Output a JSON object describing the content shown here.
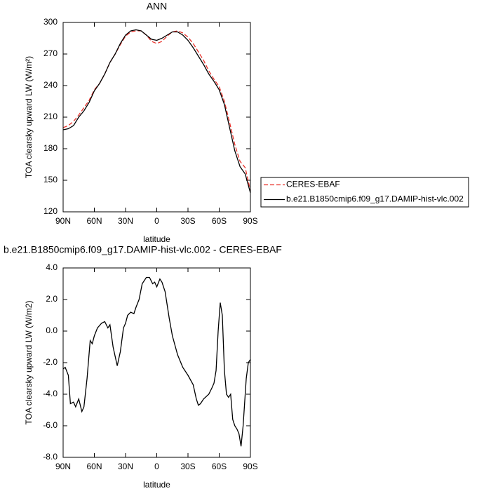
{
  "chart_data": [
    {
      "type": "line",
      "title": "ANN",
      "xlabel": "latitude",
      "ylabel": "TOA clearsky upward LW (W/m²)",
      "x": [
        90,
        85,
        80,
        75,
        70,
        65,
        60,
        55,
        50,
        45,
        40,
        35,
        30,
        25,
        20,
        15,
        10,
        5,
        0,
        -5,
        -10,
        -15,
        -20,
        -25,
        -30,
        -35,
        -40,
        -45,
        -50,
        -55,
        -60,
        -65,
        -70,
        -75,
        -80,
        -85,
        -90
      ],
      "series": [
        {
          "name": "CERES-EBAF",
          "color": "#e8312a",
          "dashed": true,
          "values": [
            200,
            202,
            206,
            212,
            219,
            226,
            236,
            242,
            251,
            262,
            270,
            279,
            287,
            291,
            292,
            292,
            288,
            282,
            280,
            282,
            287,
            291,
            292,
            290,
            286,
            280,
            272,
            264,
            254,
            246,
            239,
            225,
            205,
            184,
            168,
            162,
            140
          ]
        },
        {
          "name": "b.e21.B1850cmip6.f09_g17.DAMIP-hist-vlc.002",
          "color": "#000000",
          "dashed": false,
          "values": [
            198,
            199,
            202,
            210,
            216,
            224,
            235,
            242,
            251,
            262,
            270,
            280,
            288,
            292,
            293,
            292,
            288,
            284,
            283,
            285,
            288,
            291,
            291,
            288,
            283,
            276,
            268,
            260,
            251,
            244,
            236,
            222,
            200,
            178,
            163,
            156,
            138
          ]
        }
      ],
      "xlim": [
        90,
        -90
      ],
      "xticks": [
        {
          "value": 90,
          "label": "90N"
        },
        {
          "value": 60,
          "label": "60N"
        },
        {
          "value": 30,
          "label": "30N"
        },
        0,
        {
          "value": -30,
          "label": "30S"
        },
        {
          "value": -60,
          "label": "60S"
        },
        {
          "value": -90,
          "label": "90S"
        }
      ],
      "ylim": [
        120,
        300
      ],
      "yticks": [
        120,
        150,
        180,
        210,
        240,
        270,
        300
      ],
      "legend": "right"
    },
    {
      "type": "line",
      "title": "b.e21.B1850cmip6.f09_g17.DAMIP-hist-vlc.002 - CERES-EBAF",
      "xlabel": "latitude",
      "ylabel": "TOA clearsky upward LW (W/m2)",
      "x": [
        90,
        88,
        85,
        83,
        80,
        78,
        75,
        72,
        70,
        67,
        64,
        62,
        60,
        57,
        53,
        50,
        47,
        45,
        42,
        38,
        35,
        32,
        30,
        28,
        25,
        22,
        20,
        17,
        14,
        10,
        7,
        4,
        2,
        0,
        -3,
        -5,
        -8,
        -12,
        -15,
        -20,
        -25,
        -30,
        -35,
        -38,
        -40,
        -42,
        -45,
        -50,
        -53,
        -55,
        -57,
        -59,
        -61,
        -63,
        -65,
        -67,
        -69,
        -71,
        -73,
        -75,
        -77,
        -79,
        -81,
        -83,
        -86,
        -88,
        -90
      ],
      "series": [
        {
          "color": "#000000",
          "dashed": false,
          "values": [
            -2.4,
            -2.3,
            -2.8,
            -4.6,
            -4.5,
            -4.8,
            -4.3,
            -5.1,
            -4.8,
            -3.0,
            -0.6,
            -0.8,
            -0.3,
            0.2,
            0.5,
            0.6,
            0.2,
            0.4,
            -1.0,
            -2.2,
            -1.3,
            0.2,
            0.5,
            1.0,
            1.2,
            1.1,
            1.5,
            2.0,
            3.0,
            3.4,
            3.4,
            3.0,
            3.1,
            2.8,
            3.3,
            3.1,
            2.5,
            0.8,
            -0.3,
            -1.5,
            -2.3,
            -2.8,
            -3.4,
            -4.3,
            -4.7,
            -4.6,
            -4.3,
            -4.0,
            -3.6,
            -3.3,
            -2.5,
            0.0,
            1.8,
            1.0,
            -2.5,
            -4.0,
            -4.2,
            -4.0,
            -5.6,
            -6.0,
            -6.2,
            -6.5,
            -7.3,
            -6.0,
            -3.0,
            -2.0,
            -1.8
          ]
        }
      ],
      "xlim": [
        90,
        -90
      ],
      "xticks": [
        {
          "value": 90,
          "label": "90N"
        },
        {
          "value": 60,
          "label": "60N"
        },
        {
          "value": 30,
          "label": "30N"
        },
        0,
        {
          "value": -30,
          "label": "30S"
        },
        {
          "value": -60,
          "label": "60S"
        },
        {
          "value": -90,
          "label": "90S"
        }
      ],
      "ylim": [
        -8,
        4
      ],
      "yticks": [
        {
          "value": -8,
          "label": "-8.0"
        },
        {
          "value": -6,
          "label": "-6.0"
        },
        {
          "value": -4,
          "label": "-4.0"
        },
        {
          "value": -2,
          "label": "-2.0"
        },
        {
          "value": 0,
          "label": "0.0"
        },
        {
          "value": 2,
          "label": "2.0"
        },
        {
          "value": 4,
          "label": "4.0"
        }
      ]
    }
  ]
}
